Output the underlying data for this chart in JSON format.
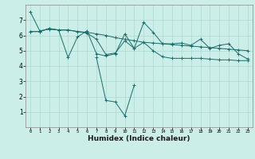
{
  "xlabel": "Humidex (Indice chaleur)",
  "bg_color": "#cceee8",
  "grid_color": "#aad8d0",
  "line_color": "#1a6b6b",
  "xlim": [
    -0.5,
    23.5
  ],
  "ylim": [
    0,
    8
  ],
  "xticks": [
    0,
    1,
    2,
    3,
    4,
    5,
    6,
    7,
    8,
    9,
    10,
    11,
    12,
    13,
    14,
    15,
    16,
    17,
    18,
    19,
    20,
    21,
    22,
    23
  ],
  "yticks": [
    1,
    2,
    3,
    4,
    5,
    6,
    7
  ],
  "series": [
    [
      7.55,
      6.3,
      6.4,
      6.35,
      4.55,
      5.9,
      6.3,
      4.8,
      4.65,
      4.8,
      6.1,
      5.15,
      6.85,
      6.2,
      5.45,
      5.45,
      5.5,
      5.35,
      5.75,
      5.15,
      5.35,
      5.45,
      4.8,
      4.45
    ],
    [
      6.25,
      6.25,
      6.45,
      6.35,
      6.35,
      6.25,
      6.2,
      6.1,
      6.0,
      5.85,
      5.75,
      5.65,
      5.55,
      5.5,
      5.45,
      5.4,
      5.35,
      5.3,
      5.25,
      5.2,
      5.15,
      5.1,
      5.05,
      5.0
    ],
    [
      6.25,
      6.25,
      6.45,
      6.35,
      6.35,
      6.25,
      6.15,
      5.75,
      4.75,
      4.85,
      5.65,
      5.15,
      5.55,
      5.0,
      4.6,
      4.5,
      4.5,
      4.5,
      4.5,
      4.45,
      4.4,
      4.4,
      4.35,
      4.35
    ],
    [
      null,
      null,
      null,
      null,
      null,
      null,
      null,
      4.55,
      1.75,
      1.65,
      0.75,
      2.75,
      null,
      null,
      null,
      null,
      null,
      null,
      null,
      null,
      null,
      null,
      null,
      null
    ]
  ]
}
